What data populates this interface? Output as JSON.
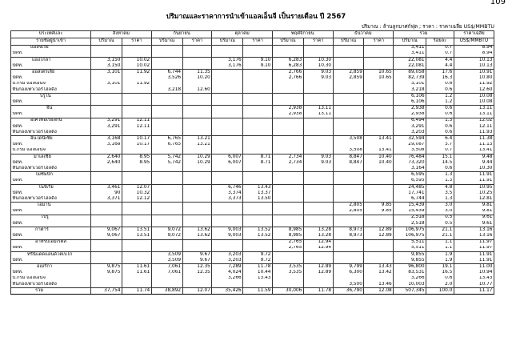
{
  "page_number": "109",
  "title": "ปริมาณและราคาการนำเข้าแอลเอ็นจี เป็นรายเดือน ปี 2567",
  "unit_note": "ปริมาณ : ล้านลูกบาศก์ฟุต ;  ราคา : ราคาเฉลี่ย US$/MMBTU",
  "header": {
    "first_col_line1": "ประเทศและ",
    "first_col_line2": "รายชื่อผู้นำเข้า",
    "months": [
      "สิงหาคม",
      "กันยายน",
      "ตุลาคม",
      "พฤศจิกายน",
      "ธันวาคม"
    ],
    "total_label": "รวม",
    "avg_price_label": "ราคาเฉลี่ย",
    "sub_qty": "ปริมาณ",
    "sub_price": "ราคา",
    "sub_share": "ร้อยละ",
    "sub_unit": "US$/MMBTU"
  },
  "rows": [
    {
      "label": "แอลจีเรีย",
      "v": [
        "",
        "",
        "",
        "",
        "",
        "",
        "",
        "",
        "",
        "",
        "3,411",
        "0.7",
        "8.94"
      ]
    },
    {
      "label": "ปตท.",
      "v": [
        "",
        "",
        "",
        "",
        "",
        "",
        "",
        "",
        "",
        "",
        "3,411",
        "0.7",
        "8.94"
      ]
    },
    {
      "label": "แองโกลา",
      "v": [
        "3,150",
        "10.02",
        "",
        "",
        "3,176",
        "9.10",
        "6,283",
        "10.30",
        "",
        "",
        "22,081",
        "4.4",
        "10.13"
      ]
    },
    {
      "label": "ปตท.",
      "v": [
        "3,150",
        "10.02",
        "",
        "",
        "3,176",
        "9.10",
        "6,283",
        "10.30",
        "",
        "",
        "22,081",
        "4.4",
        "10.13"
      ]
    },
    {
      "label": "ออสเตรเลีย",
      "v": [
        "3,101",
        "11.92",
        "6,744",
        "11.35",
        "",
        "",
        "2,766",
        "9.03",
        "2,859",
        "10.65",
        "89,058",
        "17.6",
        "10.91"
      ]
    },
    {
      "label": "ปตท.",
      "v": [
        "",
        "",
        "3,526",
        "10.20",
        "",
        "",
        "2,766",
        "9.03",
        "2,859",
        "10.65",
        "82,739",
        "16.3",
        "10.80"
      ]
    },
    {
      "label": "บี.กริม แอลเอ็นจี",
      "v": [
        "3,101",
        "11.92",
        "",
        "",
        "",
        "",
        "",
        "",
        "",
        "",
        "3,101",
        "0.6",
        "11.92"
      ]
    },
    {
      "label": "หินกองเพาเวอร์โฮลดิ้ง",
      "v": [
        "",
        "",
        "3,218",
        "12.60",
        "",
        "",
        "",
        "",
        "",
        "",
        "3,218",
        "0.6",
        "12.60"
      ]
    },
    {
      "label": "บรูไน",
      "v": [
        "",
        "",
        "",
        "",
        "",
        "",
        "",
        "",
        "",
        "",
        "6,106",
        "1.2",
        "10.08"
      ]
    },
    {
      "label": "ปตท.",
      "v": [
        "",
        "",
        "",
        "",
        "",
        "",
        "",
        "",
        "",
        "",
        "6,106",
        "1.2",
        "10.08"
      ]
    },
    {
      "label": "จีน",
      "v": [
        "",
        "",
        "",
        "",
        "",
        "",
        "2,938",
        "13.11",
        "",
        "",
        "2,938",
        "0.6",
        "13.11"
      ]
    },
    {
      "label": "ปตท.",
      "v": [
        "",
        "",
        "",
        "",
        "",
        "",
        "2,938",
        "13.11",
        "",
        "",
        "2,938",
        "0.6",
        "13.11"
      ]
    },
    {
      "label": "อิเควทอเรียลกินี",
      "v": [
        "3,291",
        "12.11",
        "",
        "",
        "",
        "",
        "",
        "",
        "",
        "",
        "6,494",
        "1.3",
        "12.02"
      ]
    },
    {
      "label": "ปตท.",
      "v": [
        "3,291",
        "12.11",
        "",
        "",
        "",
        "",
        "",
        "",
        "",
        "",
        "3,291",
        "0.6",
        "12.11"
      ]
    },
    {
      "label": "หินกองเพาเวอร์โฮลดิ้ง",
      "v": [
        "",
        "",
        "",
        "",
        "",
        "",
        "",
        "",
        "",
        "",
        "3,203",
        "0.6",
        "11.93"
      ]
    },
    {
      "label": "อินโดนีเซีย",
      "v": [
        "3,168",
        "10.17",
        "6,765",
        "13.21",
        "",
        "",
        "",
        "",
        "3,508",
        "13.41",
        "32,594",
        "6.4",
        "11.38"
      ]
    },
    {
      "label": "ปตท.",
      "v": [
        "3,168",
        "10.17",
        "6,765",
        "13.21",
        "",
        "",
        "",
        "",
        "",
        "",
        "29,087",
        "5.7",
        "11.13"
      ]
    },
    {
      "label": "บี.กริม แอลเอ็นจี",
      "v": [
        "",
        "",
        "",
        "",
        "",
        "",
        "",
        "",
        "3,508",
        "13.41",
        "3,508",
        "0.7",
        "13.41"
      ]
    },
    {
      "label": "มาเลเซีย",
      "v": [
        "2,640",
        "8.95",
        "5,742",
        "10.29",
        "6,007",
        "8.71",
        "2,734",
        "9.03",
        "8,847",
        "10.40",
        "76,484",
        "15.1",
        "9.48"
      ]
    },
    {
      "label": "ปตท.",
      "v": [
        "2,640",
        "8.95",
        "5,742",
        "10.29",
        "6,007",
        "8.71",
        "2,734",
        "9.03",
        "8,847",
        "10.40",
        "73,320",
        "14.5",
        "9.44"
      ]
    },
    {
      "label": "หินกองเพาเวอร์โฮลดิ้ง",
      "v": [
        "",
        "",
        "",
        "",
        "",
        "",
        "",
        "",
        "",
        "",
        "3,164",
        "0.6",
        "10.30"
      ]
    },
    {
      "label": "โมซัมบิก",
      "v": [
        "",
        "",
        "",
        "",
        "",
        "",
        "",
        "",
        "",
        "",
        "6,595",
        "1.3",
        "11.91"
      ]
    },
    {
      "label": "ปตท.",
      "v": [
        "",
        "",
        "",
        "",
        "",
        "",
        "",
        "",
        "",
        "",
        "6,595",
        "1.3",
        "11.91"
      ]
    },
    {
      "label": "ไนจีเรีย",
      "v": [
        "3,461",
        "12.07",
        "",
        "",
        "6,746",
        "13.43",
        "",
        "",
        "",
        "",
        "24,485",
        "4.8",
        "10.95"
      ]
    },
    {
      "label": "ปตท.",
      "v": [
        "90",
        "10.32",
        "",
        "",
        "3,374",
        "13.37",
        "",
        "",
        "",
        "",
        "17,741",
        "3.5",
        "10.25"
      ]
    },
    {
      "label": "หินกองเพาเวอร์โฮลดิ้ง",
      "v": [
        "3,371",
        "12.12",
        "",
        "",
        "3,373",
        "13.50",
        "",
        "",
        "",
        "",
        "6,744",
        "1.3",
        "12.81"
      ]
    },
    {
      "label": "โอมาน",
      "v": [
        "",
        "",
        "",
        "",
        "",
        "",
        "",
        "",
        "2,805",
        "9.85",
        "15,439",
        "3.0",
        "9.81"
      ]
    },
    {
      "label": "ปตท.",
      "v": [
        "",
        "",
        "",
        "",
        "",
        "",
        "",
        "",
        "2,805",
        "9.85",
        "15,439",
        "3.0",
        "9.81"
      ]
    },
    {
      "label": "เปรู",
      "v": [
        "",
        "",
        "",
        "",
        "",
        "",
        "",
        "",
        "",
        "",
        "2,518",
        "0.5",
        "9.61"
      ]
    },
    {
      "label": "ปตท.",
      "v": [
        "",
        "",
        "",
        "",
        "",
        "",
        "",
        "",
        "",
        "",
        "2,518",
        "0.5",
        "9.61"
      ]
    },
    {
      "label": "กาตาร์",
      "v": [
        "9,067",
        "13.51",
        "9,072",
        "13.62",
        "9,003",
        "13.52",
        "8,985",
        "13.28",
        "8,973",
        "12.89",
        "106,975",
        "21.1",
        "13.16"
      ]
    },
    {
      "label": "ปตท.",
      "v": [
        "9,067",
        "13.51",
        "9,072",
        "13.62",
        "9,003",
        "13.52",
        "8,985",
        "13.28",
        "8,973",
        "12.89",
        "106,975",
        "21.1",
        "13.16"
      ]
    },
    {
      "label": "อาหรับเอมิเรตส์",
      "v": [
        "",
        "",
        "",
        "",
        "",
        "",
        "2,765",
        "12.94",
        "",
        "",
        "5,511",
        "1.1",
        "11.97"
      ]
    },
    {
      "label": "ปตท.",
      "v": [
        "",
        "",
        "",
        "",
        "",
        "",
        "2,765",
        "12.94",
        "",
        "",
        "5,511",
        "1.1",
        "11.97"
      ]
    },
    {
      "label": "ทรินิแดดแอนด์โตเบโก",
      "v": [
        "",
        "",
        "3,509",
        "9.67",
        "3,203",
        "9.72",
        "",
        "",
        "",
        "",
        "9,855",
        "1.9",
        "11.91"
      ]
    },
    {
      "label": "ปตท.",
      "v": [
        "",
        "",
        "3,509",
        "9.67",
        "3,203",
        "9.72",
        "",
        "",
        "",
        "",
        "9,855",
        "1.9",
        "11.91"
      ]
    },
    {
      "label": "อเมริกา",
      "v": [
        "9,875",
        "11.61",
        "7,061",
        "12.35",
        "7,289",
        "11.78",
        "3,535",
        "12.89",
        "9,799",
        "13.43",
        "96,800",
        "19.1",
        "11.00"
      ]
    },
    {
      "label": "ปตท.",
      "v": [
        "9,875",
        "11.61",
        "7,061",
        "12.35",
        "4,024",
        "10.44",
        "3,535",
        "12.89",
        "6,300",
        "13.42",
        "83,531",
        "16.5",
        "10.94"
      ]
    },
    {
      "label": "บี.กริม แอลเอ็นจี",
      "v": [
        "",
        "",
        "",
        "",
        "3,266",
        "13.43",
        "",
        "",
        "",
        "",
        "3,266",
        "0.6",
        "13.43"
      ]
    },
    {
      "label": "หินกองเพาเวอร์โฮลดิ้ง",
      "v": [
        "",
        "",
        "",
        "",
        "",
        "",
        "",
        "",
        "3,500",
        "13.46",
        "10,003",
        "2.0",
        "10.77"
      ]
    },
    {
      "label": "รวม",
      "v": [
        "37,754",
        "11.74",
        "38,892",
        "12.07",
        "35,426",
        "11.59",
        "30,006",
        "11.78",
        "36,790",
        "12.08",
        "507,345",
        "100.0",
        "11.17"
      ]
    }
  ]
}
